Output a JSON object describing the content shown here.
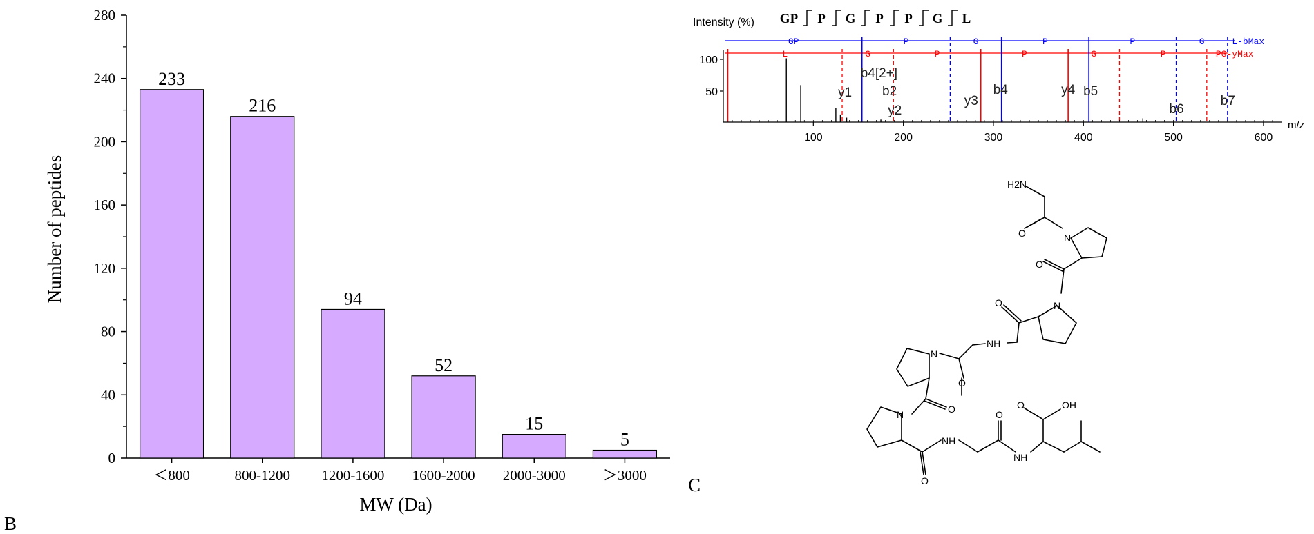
{
  "panel_labels": {
    "b": "B",
    "c": "C"
  },
  "chart_data": [
    {
      "type": "bar",
      "categories": [
        "＜800",
        "800-1200",
        "1200-1600",
        "1600-2000",
        "2000-3000",
        "＞3000"
      ],
      "values": [
        233,
        216,
        94,
        52,
        15,
        5
      ],
      "xlabel": "MW (Da)",
      "ylabel": "Number of peptides",
      "ylim": [
        0,
        280
      ],
      "yticks": [
        0,
        40,
        80,
        120,
        160,
        200,
        240,
        280
      ],
      "bar_color": "#d5aaff",
      "data_labels": true,
      "grid": false
    },
    {
      "type": "line",
      "ylabel": "Intensity (%)",
      "xlabel": "m/z",
      "sequence": [
        "GP",
        "P",
        "G",
        "P",
        "P",
        "G",
        "L"
      ],
      "xlim": [
        0,
        620
      ],
      "ylim": [
        0,
        120
      ],
      "xticks": [
        100,
        200,
        300,
        400,
        500,
        600
      ],
      "yticks": [
        50,
        100
      ],
      "b_series": {
        "name": "bMax",
        "color": "#0000ff",
        "prefix": "L-"
      },
      "y_series": {
        "name": "yMax",
        "color": "#ff0000",
        "prefix": "PG-"
      },
      "b_ladder_top": [
        "GP",
        "P",
        "G",
        "P",
        "P",
        "G"
      ],
      "y_ladder_top": [
        "L",
        "G",
        "P",
        "P",
        "G",
        "P"
      ],
      "b_ions": [
        {
          "label": "b4[2+]",
          "mz": 154
        },
        {
          "label": "b2",
          "mz": 155
        },
        {
          "label": "b4",
          "mz": 309
        },
        {
          "label": "b5",
          "mz": 406
        },
        {
          "label": "b6",
          "mz": 503
        },
        {
          "label": "b7",
          "mz": 560
        }
      ],
      "y_ions": [
        {
          "label": "y1",
          "mz": 132
        },
        {
          "label": "y2",
          "mz": 189
        },
        {
          "label": "y3",
          "mz": 286
        },
        {
          "label": "y4",
          "mz": 383
        }
      ],
      "peaks": [
        {
          "mz": 70,
          "intensity": 100
        },
        {
          "mz": 86,
          "intensity": 58
        },
        {
          "mz": 125,
          "intensity": 22
        },
        {
          "mz": 130,
          "intensity": 12
        },
        {
          "mz": 137,
          "intensity": 7
        },
        {
          "mz": 175,
          "intensity": 4
        },
        {
          "mz": 466,
          "intensity": 6
        }
      ],
      "b_lines": [
        154,
        252,
        309,
        406,
        503,
        560
      ],
      "y_lines": [
        5,
        132,
        189,
        286,
        383,
        440,
        537
      ]
    }
  ],
  "structure": {
    "atoms": {
      "amine": "H2N",
      "oh": "OH",
      "o": "O",
      "n": "N",
      "nh": "NH"
    }
  }
}
